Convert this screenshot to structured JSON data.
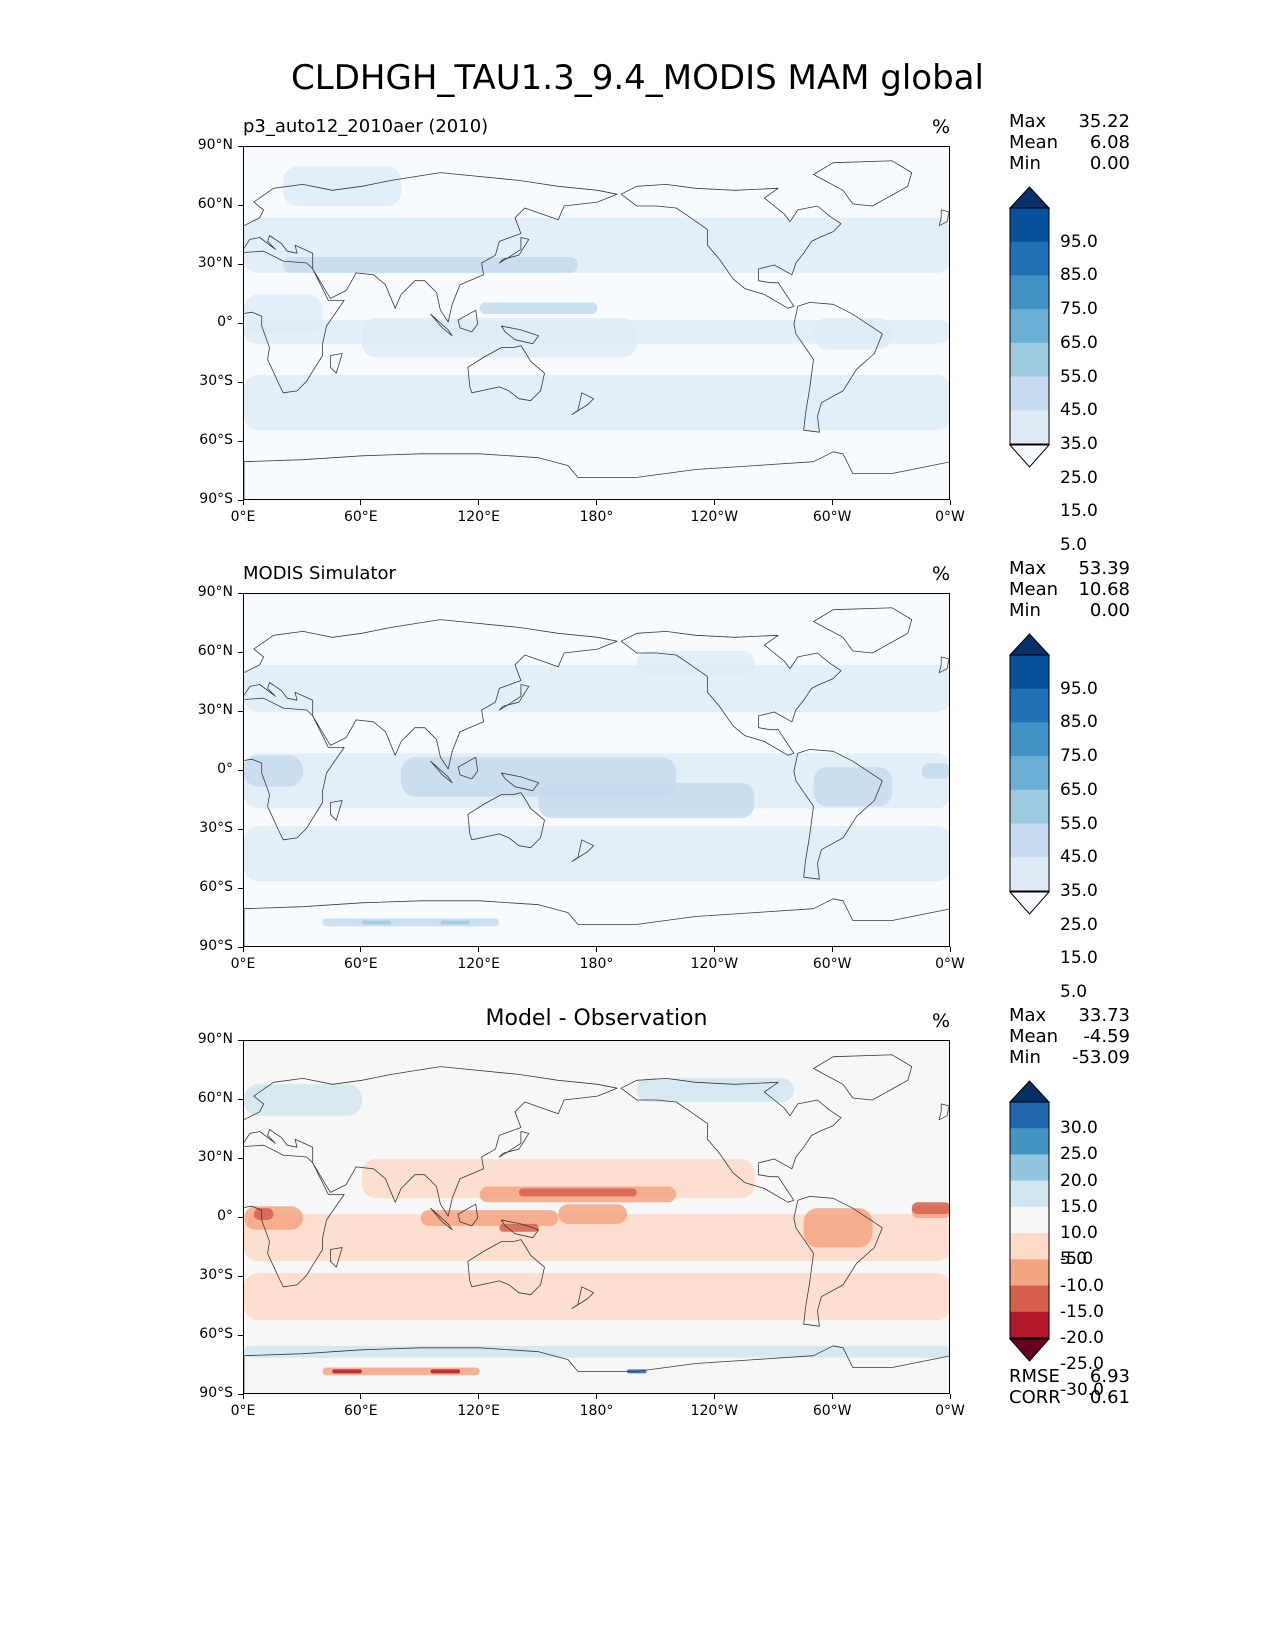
{
  "title": "CLDHGH_TAU1.3_9.4_MODIS MAM global",
  "colors": {
    "blues": [
      "#f7fbff",
      "#deebf7",
      "#c6dbef",
      "#9ecae1",
      "#6baed6",
      "#4292c6",
      "#2171b5",
      "#08519c",
      "#08306b"
    ],
    "diverging": [
      "#67001f",
      "#b2182b",
      "#d6604d",
      "#f4a582",
      "#fddbc7",
      "#f7f7f7",
      "#d1e5f0",
      "#92c5de",
      "#4393c3",
      "#2166ac",
      "#053061"
    ],
    "land": "#3a3a3a"
  },
  "x_ticks": [
    "0°E",
    "60°E",
    "120°E",
    "180°",
    "120°W",
    "60°W",
    "0°W"
  ],
  "y_ticks": [
    "90°N",
    "60°N",
    "30°N",
    "0°",
    "30°S",
    "60°S",
    "90°S"
  ],
  "panels": [
    {
      "id": "test",
      "subtitle_left": "p3_auto12_2010aer (2010)",
      "subtitle_center": "",
      "units": "%",
      "stats": [
        {
          "label": "Max",
          "value": "35.22"
        },
        {
          "label": "Mean",
          "value": "6.08"
        },
        {
          "label": "Min",
          "value": "0.00"
        }
      ],
      "colorbar_ticks": [
        "95.0",
        "85.0",
        "75.0",
        "65.0",
        "55.0",
        "45.0",
        "35.0",
        "25.0",
        "15.0",
        "5.0"
      ],
      "colormap": "blues"
    },
    {
      "id": "ref",
      "subtitle_left": "MODIS Simulator",
      "subtitle_center": "",
      "units": "%",
      "stats": [
        {
          "label": "Max",
          "value": "53.39"
        },
        {
          "label": "Mean",
          "value": "10.68"
        },
        {
          "label": "Min",
          "value": "0.00"
        }
      ],
      "colorbar_ticks": [
        "95.0",
        "85.0",
        "75.0",
        "65.0",
        "55.0",
        "45.0",
        "35.0",
        "25.0",
        "15.0",
        "5.0"
      ],
      "colormap": "blues"
    },
    {
      "id": "diff",
      "subtitle_left": "",
      "subtitle_center": "Model - Observation",
      "units": "%",
      "stats": [
        {
          "label": "Max",
          "value": "33.73"
        },
        {
          "label": "Mean",
          "value": "-4.59"
        },
        {
          "label": "Min",
          "value": "-53.09"
        }
      ],
      "colorbar_ticks": [
        "30.0",
        "25.0",
        "20.0",
        "15.0",
        "10.0",
        "5.0",
        "-5.0",
        "-10.0",
        "-15.0",
        "-20.0",
        "-25.0",
        "-30.0"
      ],
      "colormap": "diverging",
      "extra_stats": [
        {
          "label": "RMSE",
          "value": "6.93"
        },
        {
          "label": "CORR",
          "value": "0.61"
        }
      ]
    }
  ],
  "chart_data": {
    "type": "heatmap",
    "title": "CLDHGH_TAU1.3_9.4_MODIS MAM global",
    "season": "MAM",
    "units": "%",
    "maps": [
      {
        "name": "p3_auto12_2010aer (2010)",
        "max": 35.22,
        "mean": 6.08,
        "min": 0.0,
        "levels": [
          0,
          5,
          15,
          25,
          35,
          45,
          55,
          65,
          75,
          85,
          95,
          100
        ]
      },
      {
        "name": "MODIS Simulator",
        "max": 53.39,
        "mean": 10.68,
        "min": 0.0,
        "levels": [
          0,
          5,
          15,
          25,
          35,
          45,
          55,
          65,
          75,
          85,
          95,
          100
        ]
      },
      {
        "name": "Model - Observation",
        "max": 33.73,
        "mean": -4.59,
        "min": -53.09,
        "rmse": 6.93,
        "corr": 0.61,
        "levels": [
          -30,
          -25,
          -20,
          -15,
          -10,
          -5,
          5,
          10,
          15,
          20,
          25,
          30
        ]
      }
    ],
    "x_range": [
      0,
      360
    ],
    "y_range": [
      -90,
      90
    ]
  }
}
